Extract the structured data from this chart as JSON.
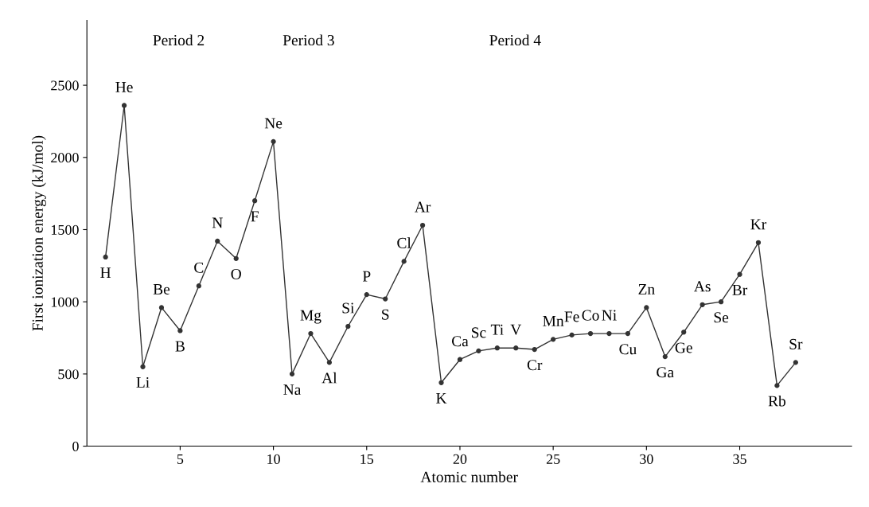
{
  "chart_data": {
    "type": "line",
    "xlabel": "Atomic number",
    "ylabel": "First ionization energy (kJ/mol)",
    "x": [
      1,
      2,
      3,
      4,
      5,
      6,
      7,
      8,
      9,
      10,
      11,
      12,
      13,
      14,
      15,
      16,
      17,
      18,
      19,
      20,
      21,
      22,
      23,
      24,
      25,
      26,
      27,
      28,
      29,
      30,
      31,
      32,
      33,
      34,
      35,
      36,
      37,
      38
    ],
    "series": [
      {
        "color": "#333333",
        "values": [
          1310,
          2360,
          550,
          960,
          800,
          1110,
          1420,
          1300,
          1700,
          2110,
          500,
          780,
          580,
          830,
          1050,
          1020,
          1280,
          1530,
          440,
          600,
          660,
          680,
          680,
          670,
          740,
          770,
          780,
          780,
          780,
          960,
          620,
          790,
          980,
          1000,
          1190,
          1410,
          420,
          580
        ]
      }
    ],
    "xlim": [
      0,
      41
    ],
    "ylim": [
      0,
      2950
    ],
    "xticks": [
      5,
      10,
      15,
      20,
      25,
      30,
      35
    ],
    "yticks": [
      0,
      500,
      1000,
      1500,
      2000,
      2500
    ],
    "grid": false,
    "legend": false,
    "marker": "circle",
    "line_style": "solid",
    "annotations": [
      "Period 2",
      "Period 3",
      "Period 4",
      {
        "text": "H",
        "x": 1,
        "y": 1310
      },
      {
        "text": "He",
        "x": 2,
        "y": 2360
      },
      {
        "text": "Li",
        "x": 3,
        "y": 550
      },
      {
        "text": "Be",
        "x": 4,
        "y": 960
      },
      {
        "text": "B",
        "x": 5,
        "y": 800
      },
      {
        "text": "C",
        "x": 6,
        "y": 1110
      },
      {
        "text": "N",
        "x": 7,
        "y": 1420
      },
      {
        "text": "O",
        "x": 8,
        "y": 1300
      },
      {
        "text": "F",
        "x": 9,
        "y": 1700
      },
      {
        "text": "Ne",
        "x": 10,
        "y": 2110
      },
      {
        "text": "Na",
        "x": 11,
        "y": 500
      },
      {
        "text": "Mg",
        "x": 12,
        "y": 780
      },
      {
        "text": "Al",
        "x": 13,
        "y": 580
      },
      {
        "text": "Si",
        "x": 14,
        "y": 830
      },
      {
        "text": "P",
        "x": 15,
        "y": 1050
      },
      {
        "text": "S",
        "x": 16,
        "y": 1020
      },
      {
        "text": "Cl",
        "x": 17,
        "y": 1280
      },
      {
        "text": "Ar",
        "x": 18,
        "y": 1530
      },
      {
        "text": "K",
        "x": 19,
        "y": 440
      },
      {
        "text": "Ca",
        "x": 20,
        "y": 600
      },
      {
        "text": "Sc",
        "x": 21,
        "y": 660
      },
      {
        "text": "Ti",
        "x": 22,
        "y": 680
      },
      {
        "text": "V",
        "x": 23,
        "y": 680
      },
      {
        "text": "Cr",
        "x": 24,
        "y": 670
      },
      {
        "text": "Mn",
        "x": 25,
        "y": 740
      },
      {
        "text": "Fe",
        "x": 26,
        "y": 770
      },
      {
        "text": "Co",
        "x": 27,
        "y": 780
      },
      {
        "text": "Ni",
        "x": 28,
        "y": 780
      },
      {
        "text": "Cu",
        "x": 29,
        "y": 780
      },
      {
        "text": "Zn",
        "x": 30,
        "y": 960
      },
      {
        "text": "Ga",
        "x": 31,
        "y": 620
      },
      {
        "text": "Ge",
        "x": 32,
        "y": 790
      },
      {
        "text": "As",
        "x": 33,
        "y": 980
      },
      {
        "text": "Se",
        "x": 34,
        "y": 1000
      },
      {
        "text": "Br",
        "x": 35,
        "y": 1190
      },
      {
        "text": "Kr",
        "x": 36,
        "y": 1410
      },
      {
        "text": "Rb",
        "x": 37,
        "y": 420
      },
      {
        "text": "Sr",
        "x": 38,
        "y": 580
      }
    ]
  }
}
